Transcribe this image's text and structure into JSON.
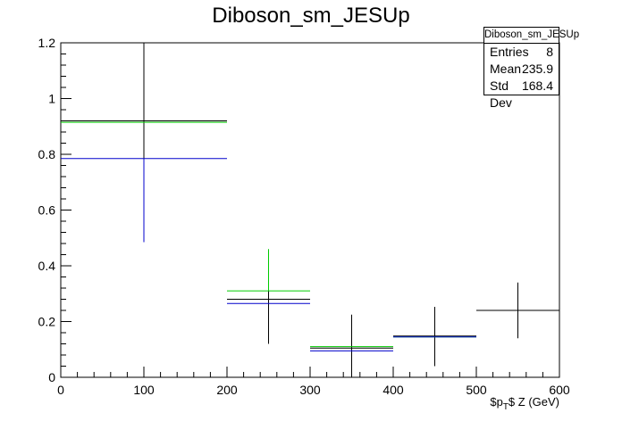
{
  "title": "Diboson_sm_JESUp",
  "stats": {
    "name": "Diboson_sm_JESUp",
    "rows": [
      {
        "label": "Entries",
        "value": "8"
      },
      {
        "label": "Mean",
        "value": "235.9"
      },
      {
        "label": "Std Dev",
        "value": "168.4"
      }
    ]
  },
  "chart_data": {
    "type": "line",
    "title": "Diboson_sm_JESUp",
    "xlabel": "$p_{T}$ Z (GeV)",
    "ylabel": "",
    "xlim": [
      0,
      600
    ],
    "ylim": [
      0,
      1.2
    ],
    "x_ticks": [
      "0",
      "100",
      "200",
      "300",
      "400",
      "500",
      "600"
    ],
    "y_ticks": [
      "0",
      "0.2",
      "0.4",
      "0.6",
      "0.8",
      "1",
      "1.2"
    ],
    "grid": false,
    "series": [
      {
        "color": "#000000",
        "bins": [
          {
            "xlow": 0,
            "xhigh": 200,
            "x": 100,
            "y": 0.92,
            "yerr_low": 0.43,
            "yerr_high": 0.28
          },
          {
            "xlow": 200,
            "xhigh": 300,
            "x": 250,
            "y": 0.28,
            "yerr_low": 0.16,
            "yerr_high": 0.15
          },
          {
            "xlow": 300,
            "xhigh": 400,
            "x": 350,
            "y": 0.105,
            "yerr_low": 0.105,
            "yerr_high": 0.12
          },
          {
            "xlow": 400,
            "xhigh": 500,
            "x": 450,
            "y": 0.148,
            "yerr_low": 0.108,
            "yerr_high": 0.105
          },
          {
            "xlow": 500,
            "xhigh": 600,
            "x": 550,
            "y": 0.24,
            "yerr_low": 0.1,
            "yerr_high": 0.1
          }
        ]
      },
      {
        "color": "#00cc00",
        "bins": [
          {
            "xlow": 0,
            "xhigh": 200,
            "x": 100,
            "y": 0.915
          },
          {
            "xlow": 200,
            "xhigh": 300,
            "x": 250,
            "y": 0.31,
            "yerr_low": 0.0,
            "yerr_high": 0.15
          },
          {
            "xlow": 300,
            "xhigh": 400,
            "x": 350,
            "y": 0.11
          },
          {
            "xlow": 400,
            "xhigh": 500,
            "x": 450,
            "y": 0.145
          }
        ]
      },
      {
        "color": "#0000cc",
        "bins": [
          {
            "xlow": 0,
            "xhigh": 200,
            "x": 100,
            "y": 0.785,
            "yerr_low": 0.3,
            "yerr_high": 0.0
          },
          {
            "xlow": 200,
            "xhigh": 300,
            "x": 250,
            "y": 0.265
          },
          {
            "xlow": 300,
            "xhigh": 400,
            "x": 350,
            "y": 0.095
          },
          {
            "xlow": 400,
            "xhigh": 500,
            "x": 450,
            "y": 0.145
          }
        ]
      }
    ]
  }
}
